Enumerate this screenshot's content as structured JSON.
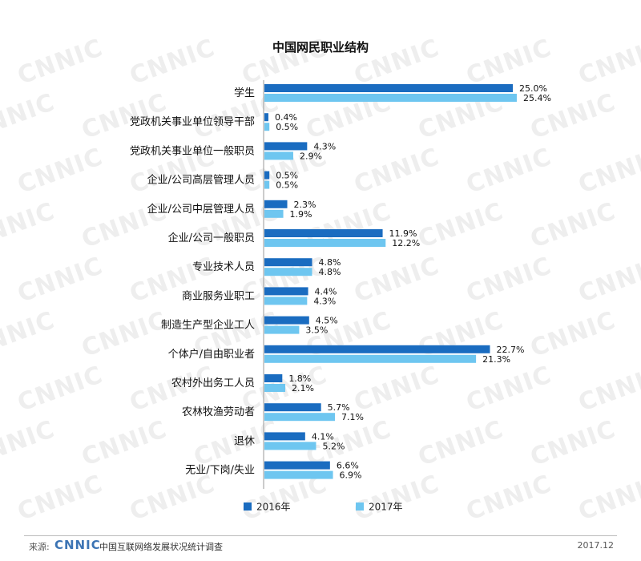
{
  "chart_data": {
    "type": "bar",
    "orientation": "horizontal",
    "title": "中国网民职业结构",
    "categories": [
      "学生",
      "党政机关事业单位领导干部",
      "党政机关事业单位一般职员",
      "企业/公司高层管理人员",
      "企业/公司中层管理人员",
      "企业/公司一般职员",
      "专业技术人员",
      "商业服务业职工",
      "制造生产型企业工人",
      "个体户/自由职业者",
      "农村外出务工人员",
      "农林牧渔劳动者",
      "退休",
      "无业/下岗/失业"
    ],
    "series": [
      {
        "name": "2016年",
        "color": "#1a6cc0",
        "values": [
          25.0,
          0.4,
          4.3,
          0.5,
          2.3,
          11.9,
          4.8,
          4.4,
          4.5,
          22.7,
          1.8,
          5.7,
          4.1,
          6.6
        ],
        "labels": [
          "25.0%",
          "0.4%",
          "4.3%",
          "0.5%",
          "2.3%",
          "11.9%",
          "4.8%",
          "4.4%",
          "4.5%",
          "22.7%",
          "1.8%",
          "5.7%",
          "4.1%",
          "6.6%"
        ]
      },
      {
        "name": "2017年",
        "color": "#6ec6f0",
        "values": [
          25.4,
          0.5,
          2.9,
          0.5,
          1.9,
          12.2,
          4.8,
          4.3,
          3.5,
          21.3,
          2.1,
          7.1,
          5.2,
          6.9
        ],
        "labels": [
          "25.4%",
          "0.5%",
          "2.9%",
          "0.5%",
          "1.9%",
          "12.2%",
          "4.8%",
          "4.3%",
          "3.5%",
          "21.3%",
          "2.1%",
          "7.1%",
          "5.2%",
          "6.9%"
        ]
      }
    ],
    "legend_position": "bottom",
    "grid": false
  },
  "watermark_text": "CNNIC",
  "footer": {
    "source_label": "来源:",
    "source_logo": "CNNIC",
    "source_text": "中国互联网络发展状况统计调查",
    "date": "2017.12"
  }
}
